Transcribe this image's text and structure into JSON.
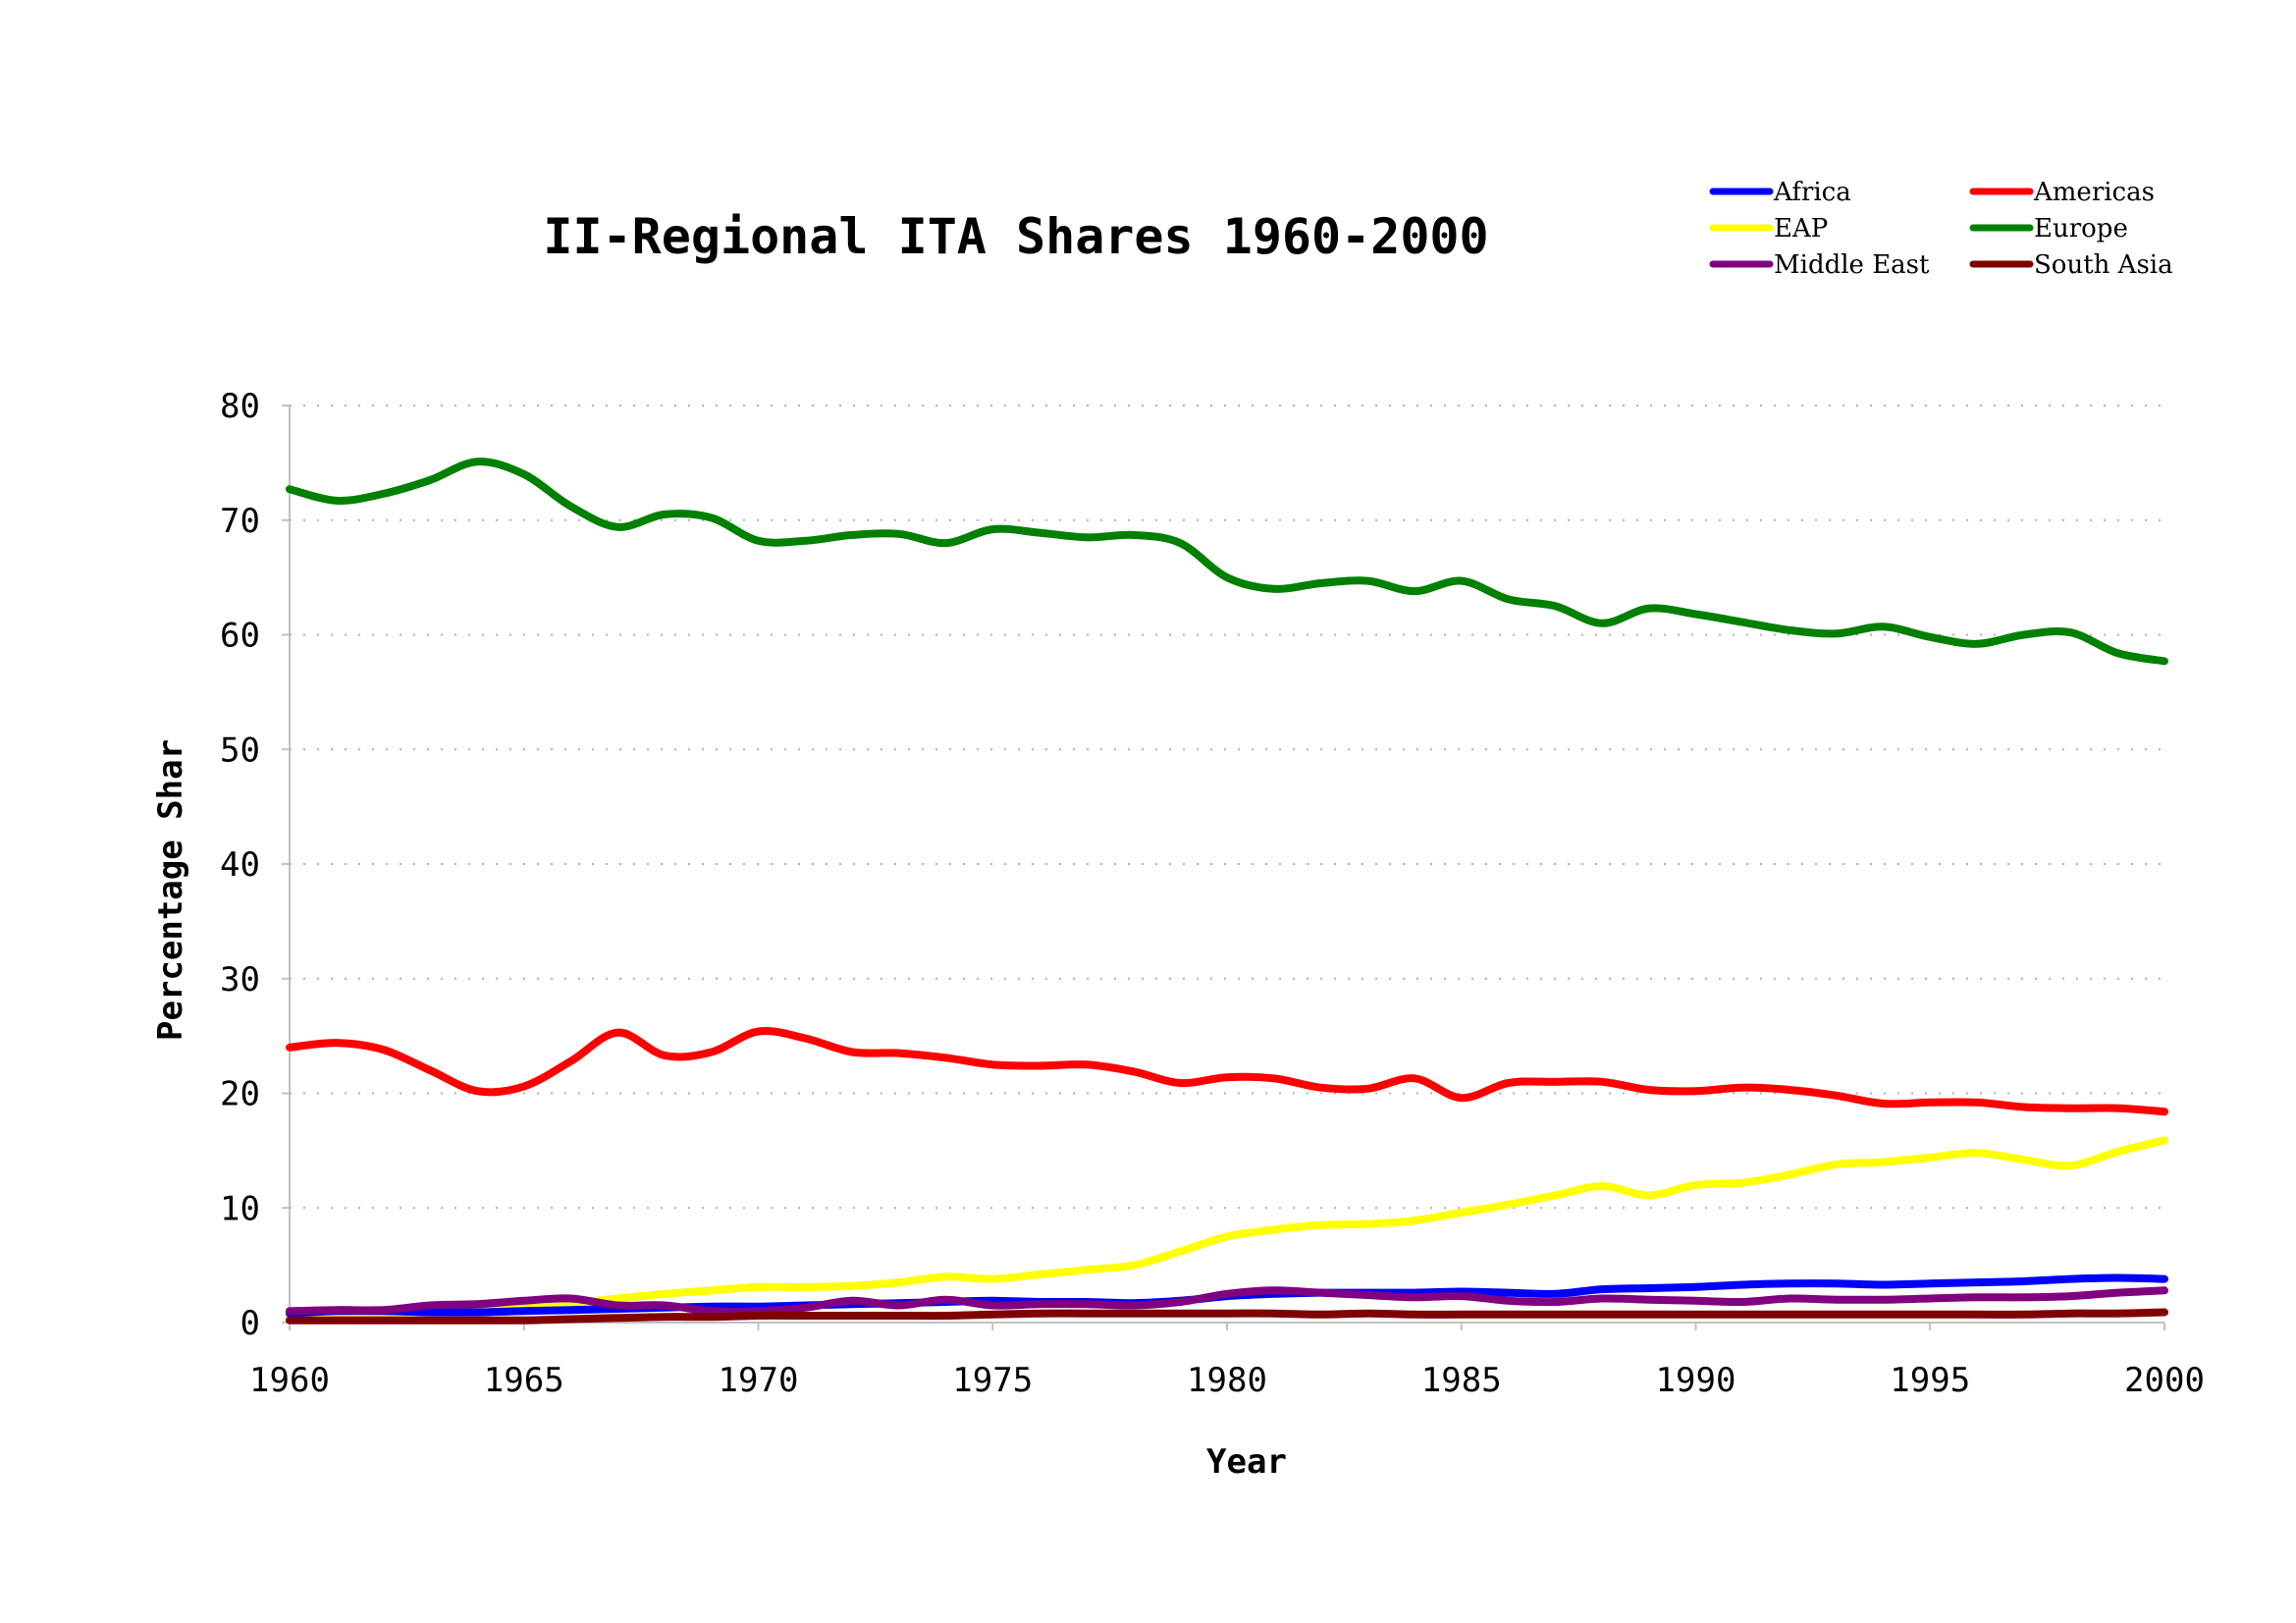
{
  "chart_data": {
    "type": "line",
    "title": "II-Regional ITA Shares 1960-2000",
    "xlabel": "Year",
    "ylabel": "Percentage Shar",
    "xlim": [
      1960,
      2000
    ],
    "ylim": [
      0,
      80
    ],
    "x_ticks": [
      "1960",
      "1965",
      "1970",
      "1975",
      "1980",
      "1985",
      "1990",
      "1995",
      "2000"
    ],
    "y_ticks": [
      "0",
      "10",
      "20",
      "30",
      "40",
      "50",
      "60",
      "70",
      "80"
    ],
    "grid": "horizontal dotted",
    "legend_position": "top-right",
    "x": [
      1960,
      1961,
      1962,
      1963,
      1964,
      1965,
      1966,
      1967,
      1968,
      1969,
      1970,
      1971,
      1972,
      1973,
      1974,
      1975,
      1976,
      1977,
      1978,
      1979,
      1980,
      1981,
      1982,
      1983,
      1984,
      1985,
      1986,
      1987,
      1988,
      1989,
      1990,
      1991,
      1992,
      1993,
      1994,
      1995,
      1996,
      1997,
      1998,
      1999,
      2000
    ],
    "series": [
      {
        "name": "Africa",
        "color": "#0000ff",
        "values": [
          0.8,
          1.0,
          1.0,
          0.9,
          0.9,
          1.0,
          1.1,
          1.2,
          1.3,
          1.4,
          1.4,
          1.5,
          1.6,
          1.7,
          1.8,
          1.9,
          1.8,
          1.8,
          1.7,
          1.9,
          2.3,
          2.5,
          2.6,
          2.6,
          2.6,
          2.7,
          2.6,
          2.5,
          2.9,
          3.0,
          3.1,
          3.3,
          3.4,
          3.4,
          3.3,
          3.4,
          3.5,
          3.6,
          3.8,
          3.9,
          3.8
        ]
      },
      {
        "name": "Americas",
        "color": "#ff0000",
        "values": [
          24.0,
          24.4,
          23.8,
          22.0,
          20.2,
          20.6,
          22.8,
          25.3,
          23.3,
          23.6,
          25.4,
          24.8,
          23.6,
          23.5,
          23.1,
          22.5,
          22.4,
          22.5,
          21.9,
          20.9,
          21.4,
          21.3,
          20.5,
          20.4,
          21.3,
          19.6,
          20.9,
          21.0,
          21.0,
          20.3,
          20.2,
          20.5,
          20.3,
          19.8,
          19.1,
          19.2,
          19.2,
          18.8,
          18.7,
          18.7,
          18.4
        ]
      },
      {
        "name": "EAP",
        "color": "#ffff00",
        "values": [
          0.5,
          0.7,
          0.8,
          1.0,
          1.1,
          1.4,
          1.7,
          2.1,
          2.5,
          2.8,
          3.1,
          3.1,
          3.2,
          3.5,
          4.0,
          3.8,
          4.2,
          4.6,
          5.0,
          6.2,
          7.5,
          8.1,
          8.5,
          8.6,
          8.9,
          9.6,
          10.3,
          11.1,
          11.9,
          11.1,
          12.0,
          12.2,
          12.9,
          13.8,
          14.0,
          14.4,
          14.8,
          14.2,
          13.7,
          14.9,
          15.9
        ]
      },
      {
        "name": "Europe",
        "color": "#008000",
        "values": [
          72.7,
          71.7,
          72.3,
          73.5,
          75.1,
          74.0,
          71.2,
          69.4,
          70.5,
          70.2,
          68.2,
          68.2,
          68.7,
          68.8,
          68.0,
          69.2,
          68.9,
          68.5,
          68.7,
          68.0,
          65.0,
          64.0,
          64.5,
          64.7,
          63.8,
          64.7,
          63.1,
          62.5,
          61.0,
          62.3,
          61.8,
          61.1,
          60.4,
          60.1,
          60.7,
          59.8,
          59.2,
          60.0,
          60.2,
          58.4,
          57.7
        ]
      },
      {
        "name": "Middle East",
        "color": "#800080",
        "values": [
          1.0,
          1.1,
          1.1,
          1.5,
          1.6,
          1.9,
          2.1,
          1.5,
          1.5,
          1.0,
          1.0,
          1.3,
          1.9,
          1.5,
          2.0,
          1.5,
          1.6,
          1.6,
          1.5,
          1.8,
          2.5,
          2.8,
          2.6,
          2.4,
          2.2,
          2.3,
          1.9,
          1.8,
          2.1,
          2.0,
          1.9,
          1.8,
          2.1,
          2.0,
          2.0,
          2.1,
          2.2,
          2.2,
          2.3,
          2.6,
          2.8
        ]
      },
      {
        "name": "South Asia",
        "color": "#800000",
        "values": [
          0.2,
          0.2,
          0.2,
          0.2,
          0.2,
          0.2,
          0.3,
          0.4,
          0.5,
          0.5,
          0.6,
          0.6,
          0.6,
          0.6,
          0.6,
          0.7,
          0.8,
          0.8,
          0.8,
          0.8,
          0.8,
          0.8,
          0.7,
          0.8,
          0.7,
          0.7,
          0.7,
          0.7,
          0.7,
          0.7,
          0.7,
          0.7,
          0.7,
          0.7,
          0.7,
          0.7,
          0.7,
          0.7,
          0.8,
          0.8,
          0.9
        ]
      }
    ]
  }
}
